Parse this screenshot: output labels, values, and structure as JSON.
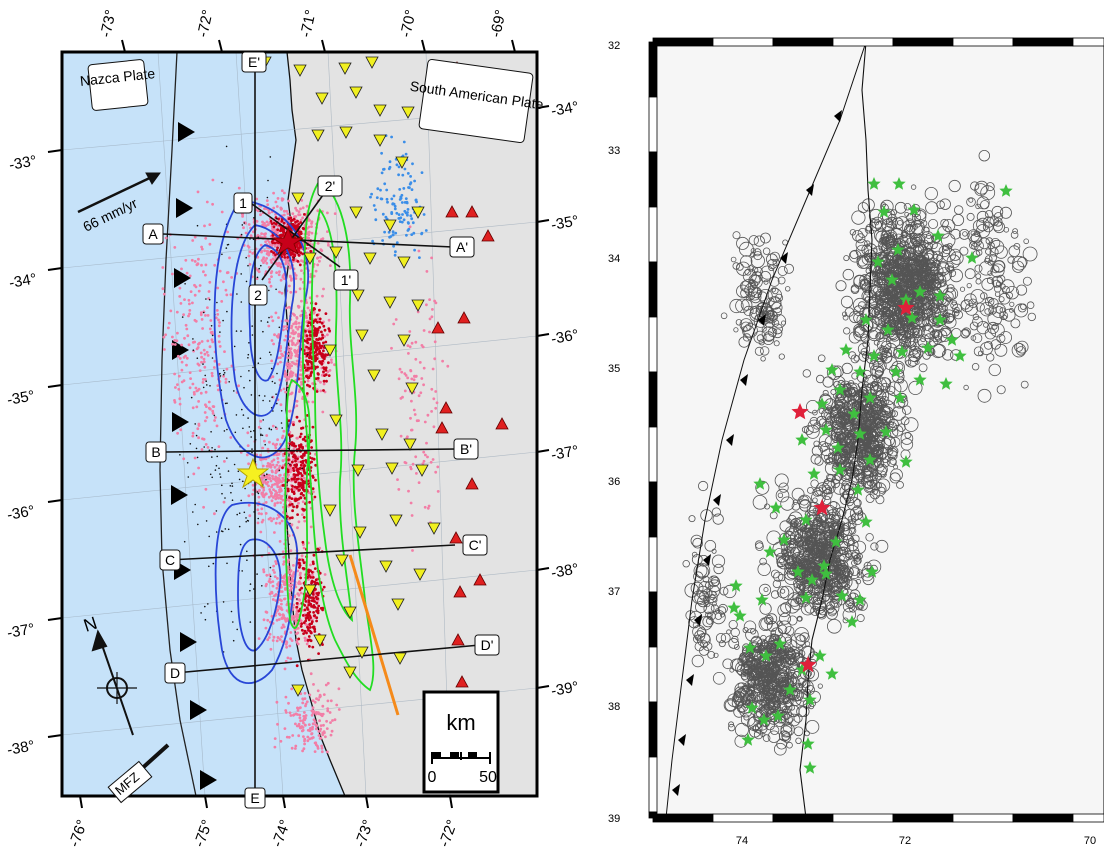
{
  "left_map": {
    "tick_labels_top": [
      "-73°",
      "-72°",
      "-71°",
      "-70°",
      "-69°"
    ],
    "tick_labels_left": [
      "-33°",
      "-34°",
      "-35°",
      "-36°",
      "-37°",
      "-38°"
    ],
    "tick_labels_bottom": [
      "-76°",
      "-75°",
      "-74°",
      "-73°",
      "-72°"
    ],
    "tick_labels_right": [
      "-34°",
      "-35°",
      "-36°",
      "-37°",
      "-38°",
      "-39°"
    ],
    "plate_labels": {
      "nazca": "Nazca Plate",
      "south_american": "South American Plate"
    },
    "convergence": "66 mm/yr",
    "profiles": [
      {
        "start": "A",
        "end": "A'"
      },
      {
        "start": "B",
        "end": "B'"
      },
      {
        "start": "C",
        "end": "C'"
      },
      {
        "start": "D",
        "end": "D'"
      },
      {
        "start": "E",
        "end": "E'"
      }
    ],
    "short_profiles": [
      {
        "start": "1",
        "end": "1'"
      },
      {
        "start": "2",
        "end": "2'"
      }
    ],
    "fault_zone": "MFZ",
    "north_label": "N",
    "scale_bar": {
      "unit": "km",
      "min": "0",
      "max": "50"
    },
    "colors": {
      "ocean": "#c6e2f9",
      "land": "#e3e3e3",
      "seismicity_pink": "#f27ea6",
      "seismicity_red": "#c8001a",
      "slip_contour": "#2846d6",
      "afterslip_contour": "#22dd22",
      "station_triangle": "#f1f020",
      "volcano": "#e02020",
      "epicenter_star": "#f6f020",
      "blue_dots": "#3b8ee8",
      "orange_line": "#f58a1a"
    }
  },
  "right_map": {
    "y_labels": [
      "32",
      "33",
      "34",
      "35",
      "36",
      "37",
      "38",
      "39"
    ],
    "x_labels": [
      "74",
      "72",
      "70"
    ],
    "colors": {
      "events": "#444444",
      "green_stars": "#3fbf3f",
      "red_stars": "#e0203a",
      "background": "#f6f6f6"
    }
  }
}
